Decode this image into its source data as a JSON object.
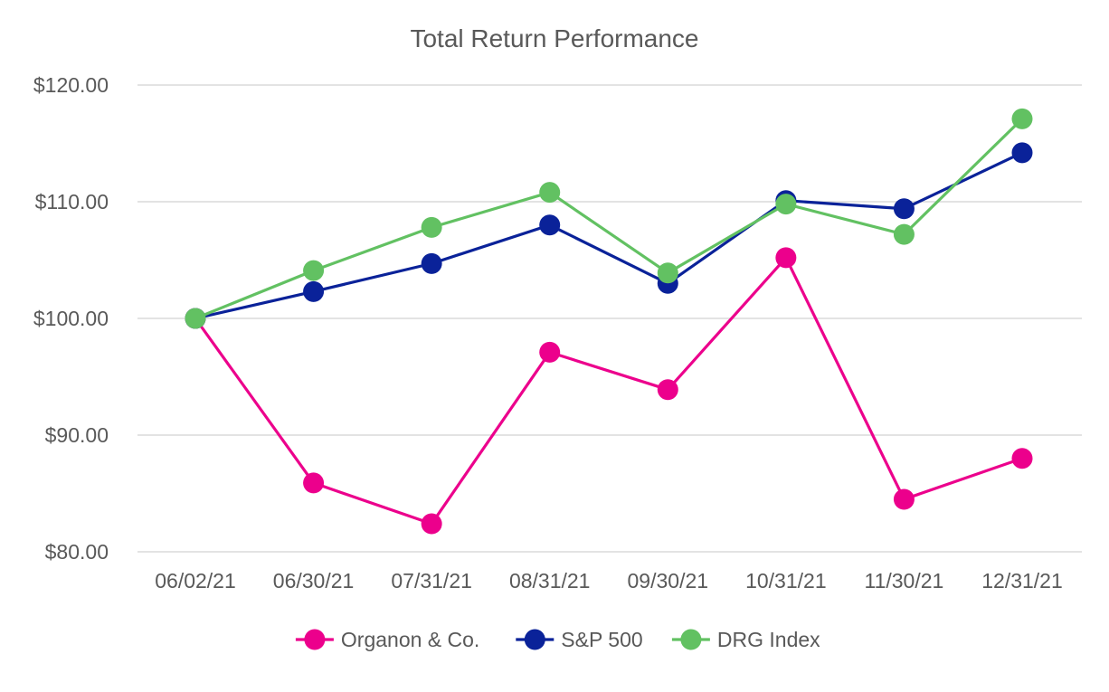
{
  "chart_data": {
    "type": "line",
    "title": "Total Return Performance",
    "xlabel": "",
    "ylabel": "",
    "categories": [
      "06/02/21",
      "06/30/21",
      "07/31/21",
      "08/31/21",
      "09/30/21",
      "10/31/21",
      "11/30/21",
      "12/31/21"
    ],
    "ylim": [
      80,
      120
    ],
    "yticks": [
      80,
      90,
      100,
      110,
      120
    ],
    "ytick_labels": [
      "$80.00",
      "$90.00",
      "$100.00",
      "$110.00",
      "$120.00"
    ],
    "grid": true,
    "legend_position": "bottom",
    "series": [
      {
        "name": "Organon & Co.",
        "color": "#EC008C",
        "values": [
          100.0,
          85.9,
          82.4,
          97.1,
          93.9,
          105.2,
          84.5,
          88.0
        ]
      },
      {
        "name": "S&P 500",
        "color": "#0A2299",
        "values": [
          100.0,
          102.3,
          104.7,
          108.0,
          103.0,
          110.1,
          109.4,
          114.2
        ]
      },
      {
        "name": "DRG Index",
        "color": "#62C162",
        "values": [
          100.0,
          104.1,
          107.8,
          110.8,
          103.9,
          109.8,
          107.2,
          117.1
        ]
      }
    ]
  }
}
